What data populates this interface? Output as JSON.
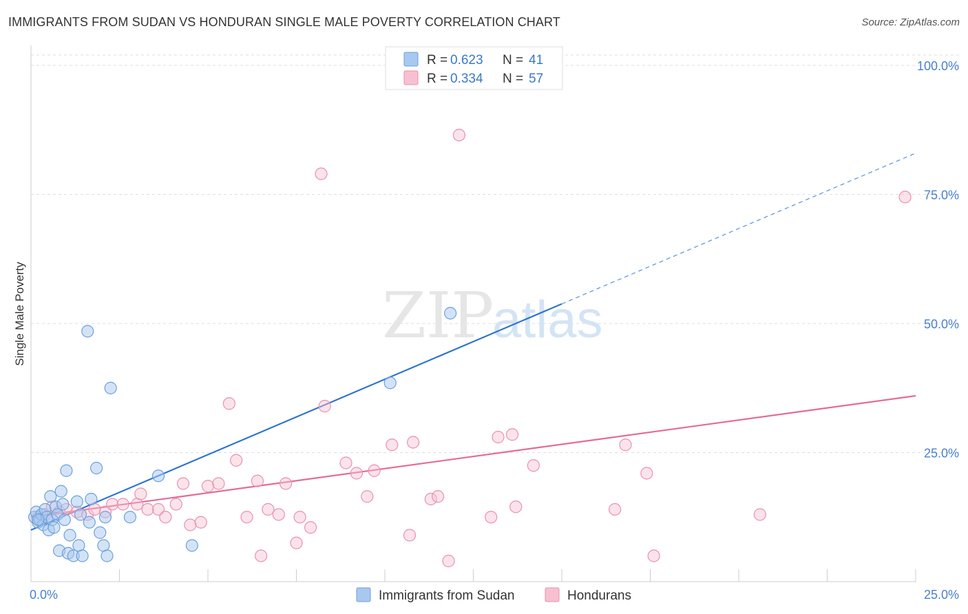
{
  "header": {
    "title": "IMMIGRANTS FROM SUDAN VS HONDURAN SINGLE MALE POVERTY CORRELATION CHART",
    "source": "Source: ZipAtlas.com"
  },
  "watermark": {
    "zip": "ZIP",
    "atlas": "atlas"
  },
  "colors": {
    "sudan_fill": "#a8c8f0",
    "sudan_stroke": "#6d9fd8",
    "sudan_line": "#2f75d0",
    "honduran_fill": "#f7c0d0",
    "honduran_stroke": "#e890ad",
    "honduran_line": "#e56b94",
    "tick_blue": "#4a7fcf",
    "grid": "#dddddd"
  },
  "legend_top": {
    "rows": [
      {
        "r_label": "R =",
        "r_value": "0.623",
        "n_label": "N =",
        "n_value": "41",
        "series": "sudan"
      },
      {
        "r_label": "R =",
        "r_value": "0.334",
        "n_label": "N =",
        "n_value": "57",
        "series": "honduran"
      }
    ]
  },
  "chart_data": {
    "type": "scatter",
    "title": "IMMIGRANTS FROM SUDAN VS HONDURAN SINGLE MALE POVERTY CORRELATION CHART",
    "xlabel": "",
    "ylabel": "Single Male Poverty",
    "xlim": [
      0,
      25
    ],
    "ylim": [
      0,
      102
    ],
    "x_tick_labels": [
      "0.0%",
      "25.0%"
    ],
    "y_ticks": [
      25,
      50,
      75,
      100
    ],
    "y_tick_labels": [
      "25.0%",
      "50.0%",
      "75.0%",
      "100.0%"
    ],
    "grid": true,
    "legend_position": "bottom",
    "series": [
      {
        "name": "Immigrants from Sudan",
        "key": "sudan",
        "points": [
          [
            0.1,
            12.5
          ],
          [
            0.15,
            13.5
          ],
          [
            0.2,
            11.5
          ],
          [
            0.25,
            12.0
          ],
          [
            0.3,
            13.0
          ],
          [
            0.35,
            11.0
          ],
          [
            0.4,
            14.0
          ],
          [
            0.45,
            12.5
          ],
          [
            0.5,
            10.0
          ],
          [
            0.55,
            16.5
          ],
          [
            0.6,
            12.0
          ],
          [
            0.65,
            10.5
          ],
          [
            0.7,
            14.5
          ],
          [
            0.75,
            13.0
          ],
          [
            0.8,
            6.0
          ],
          [
            0.85,
            17.5
          ],
          [
            0.9,
            15.0
          ],
          [
            0.95,
            12.0
          ],
          [
            1.0,
            21.5
          ],
          [
            1.05,
            5.5
          ],
          [
            1.1,
            9.0
          ],
          [
            1.2,
            5.0
          ],
          [
            1.3,
            15.5
          ],
          [
            1.35,
            7.0
          ],
          [
            1.4,
            13.0
          ],
          [
            1.45,
            5.0
          ],
          [
            1.6,
            48.5
          ],
          [
            1.65,
            11.5
          ],
          [
            1.7,
            16.0
          ],
          [
            1.85,
            22.0
          ],
          [
            1.95,
            9.5
          ],
          [
            2.05,
            7.0
          ],
          [
            2.1,
            12.5
          ],
          [
            2.15,
            5.0
          ],
          [
            2.25,
            37.5
          ],
          [
            2.8,
            12.5
          ],
          [
            3.6,
            20.5
          ],
          [
            4.55,
            7.0
          ],
          [
            10.15,
            38.5
          ],
          [
            11.85,
            52.0
          ],
          [
            0.2,
            12.0
          ]
        ],
        "trend": {
          "x0": 0.0,
          "y0": 10.0,
          "x_solid_end": 15.0,
          "x1": 25.0,
          "y1": 83.0
        }
      },
      {
        "name": "Hondurans",
        "key": "honduran",
        "points": [
          [
            0.2,
            12.5
          ],
          [
            0.4,
            13.0
          ],
          [
            0.6,
            14.5
          ],
          [
            0.8,
            13.5
          ],
          [
            1.0,
            14.0
          ],
          [
            1.3,
            13.5
          ],
          [
            1.6,
            13.0
          ],
          [
            1.8,
            14.0
          ],
          [
            2.1,
            13.5
          ],
          [
            2.3,
            15.0
          ],
          [
            2.6,
            15.0
          ],
          [
            3.0,
            15.0
          ],
          [
            3.1,
            17.0
          ],
          [
            3.3,
            14.0
          ],
          [
            3.6,
            14.0
          ],
          [
            3.8,
            12.5
          ],
          [
            4.1,
            15.0
          ],
          [
            4.3,
            19.0
          ],
          [
            4.5,
            11.0
          ],
          [
            4.8,
            11.5
          ],
          [
            5.0,
            18.5
          ],
          [
            5.3,
            19.0
          ],
          [
            5.6,
            34.5
          ],
          [
            5.8,
            23.5
          ],
          [
            6.1,
            12.5
          ],
          [
            6.4,
            19.5
          ],
          [
            6.5,
            5.0
          ],
          [
            6.7,
            14.0
          ],
          [
            7.0,
            13.0
          ],
          [
            7.2,
            19.0
          ],
          [
            7.5,
            7.5
          ],
          [
            7.6,
            12.5
          ],
          [
            7.9,
            10.5
          ],
          [
            8.2,
            79.0
          ],
          [
            8.3,
            34.0
          ],
          [
            8.9,
            23.0
          ],
          [
            9.2,
            21.0
          ],
          [
            9.5,
            16.5
          ],
          [
            9.7,
            21.5
          ],
          [
            10.2,
            26.5
          ],
          [
            10.7,
            9.0
          ],
          [
            10.8,
            27.0
          ],
          [
            11.3,
            16.0
          ],
          [
            11.5,
            16.5
          ],
          [
            11.8,
            4.0
          ],
          [
            12.1,
            86.5
          ],
          [
            13.0,
            12.5
          ],
          [
            13.2,
            28.0
          ],
          [
            13.6,
            28.5
          ],
          [
            13.7,
            14.5
          ],
          [
            14.2,
            22.5
          ],
          [
            16.5,
            14.0
          ],
          [
            16.8,
            26.5
          ],
          [
            17.4,
            21.0
          ],
          [
            17.6,
            5.0
          ],
          [
            20.6,
            13.0
          ],
          [
            24.7,
            74.5
          ]
        ],
        "trend": {
          "x0": 0.0,
          "y0": 12.5,
          "x1": 25.0,
          "y1": 36.0
        }
      }
    ]
  },
  "legend_bottom": {
    "items": [
      {
        "label": "Immigrants from Sudan",
        "series": "sudan"
      },
      {
        "label": "Hondurans",
        "series": "honduran"
      }
    ]
  }
}
